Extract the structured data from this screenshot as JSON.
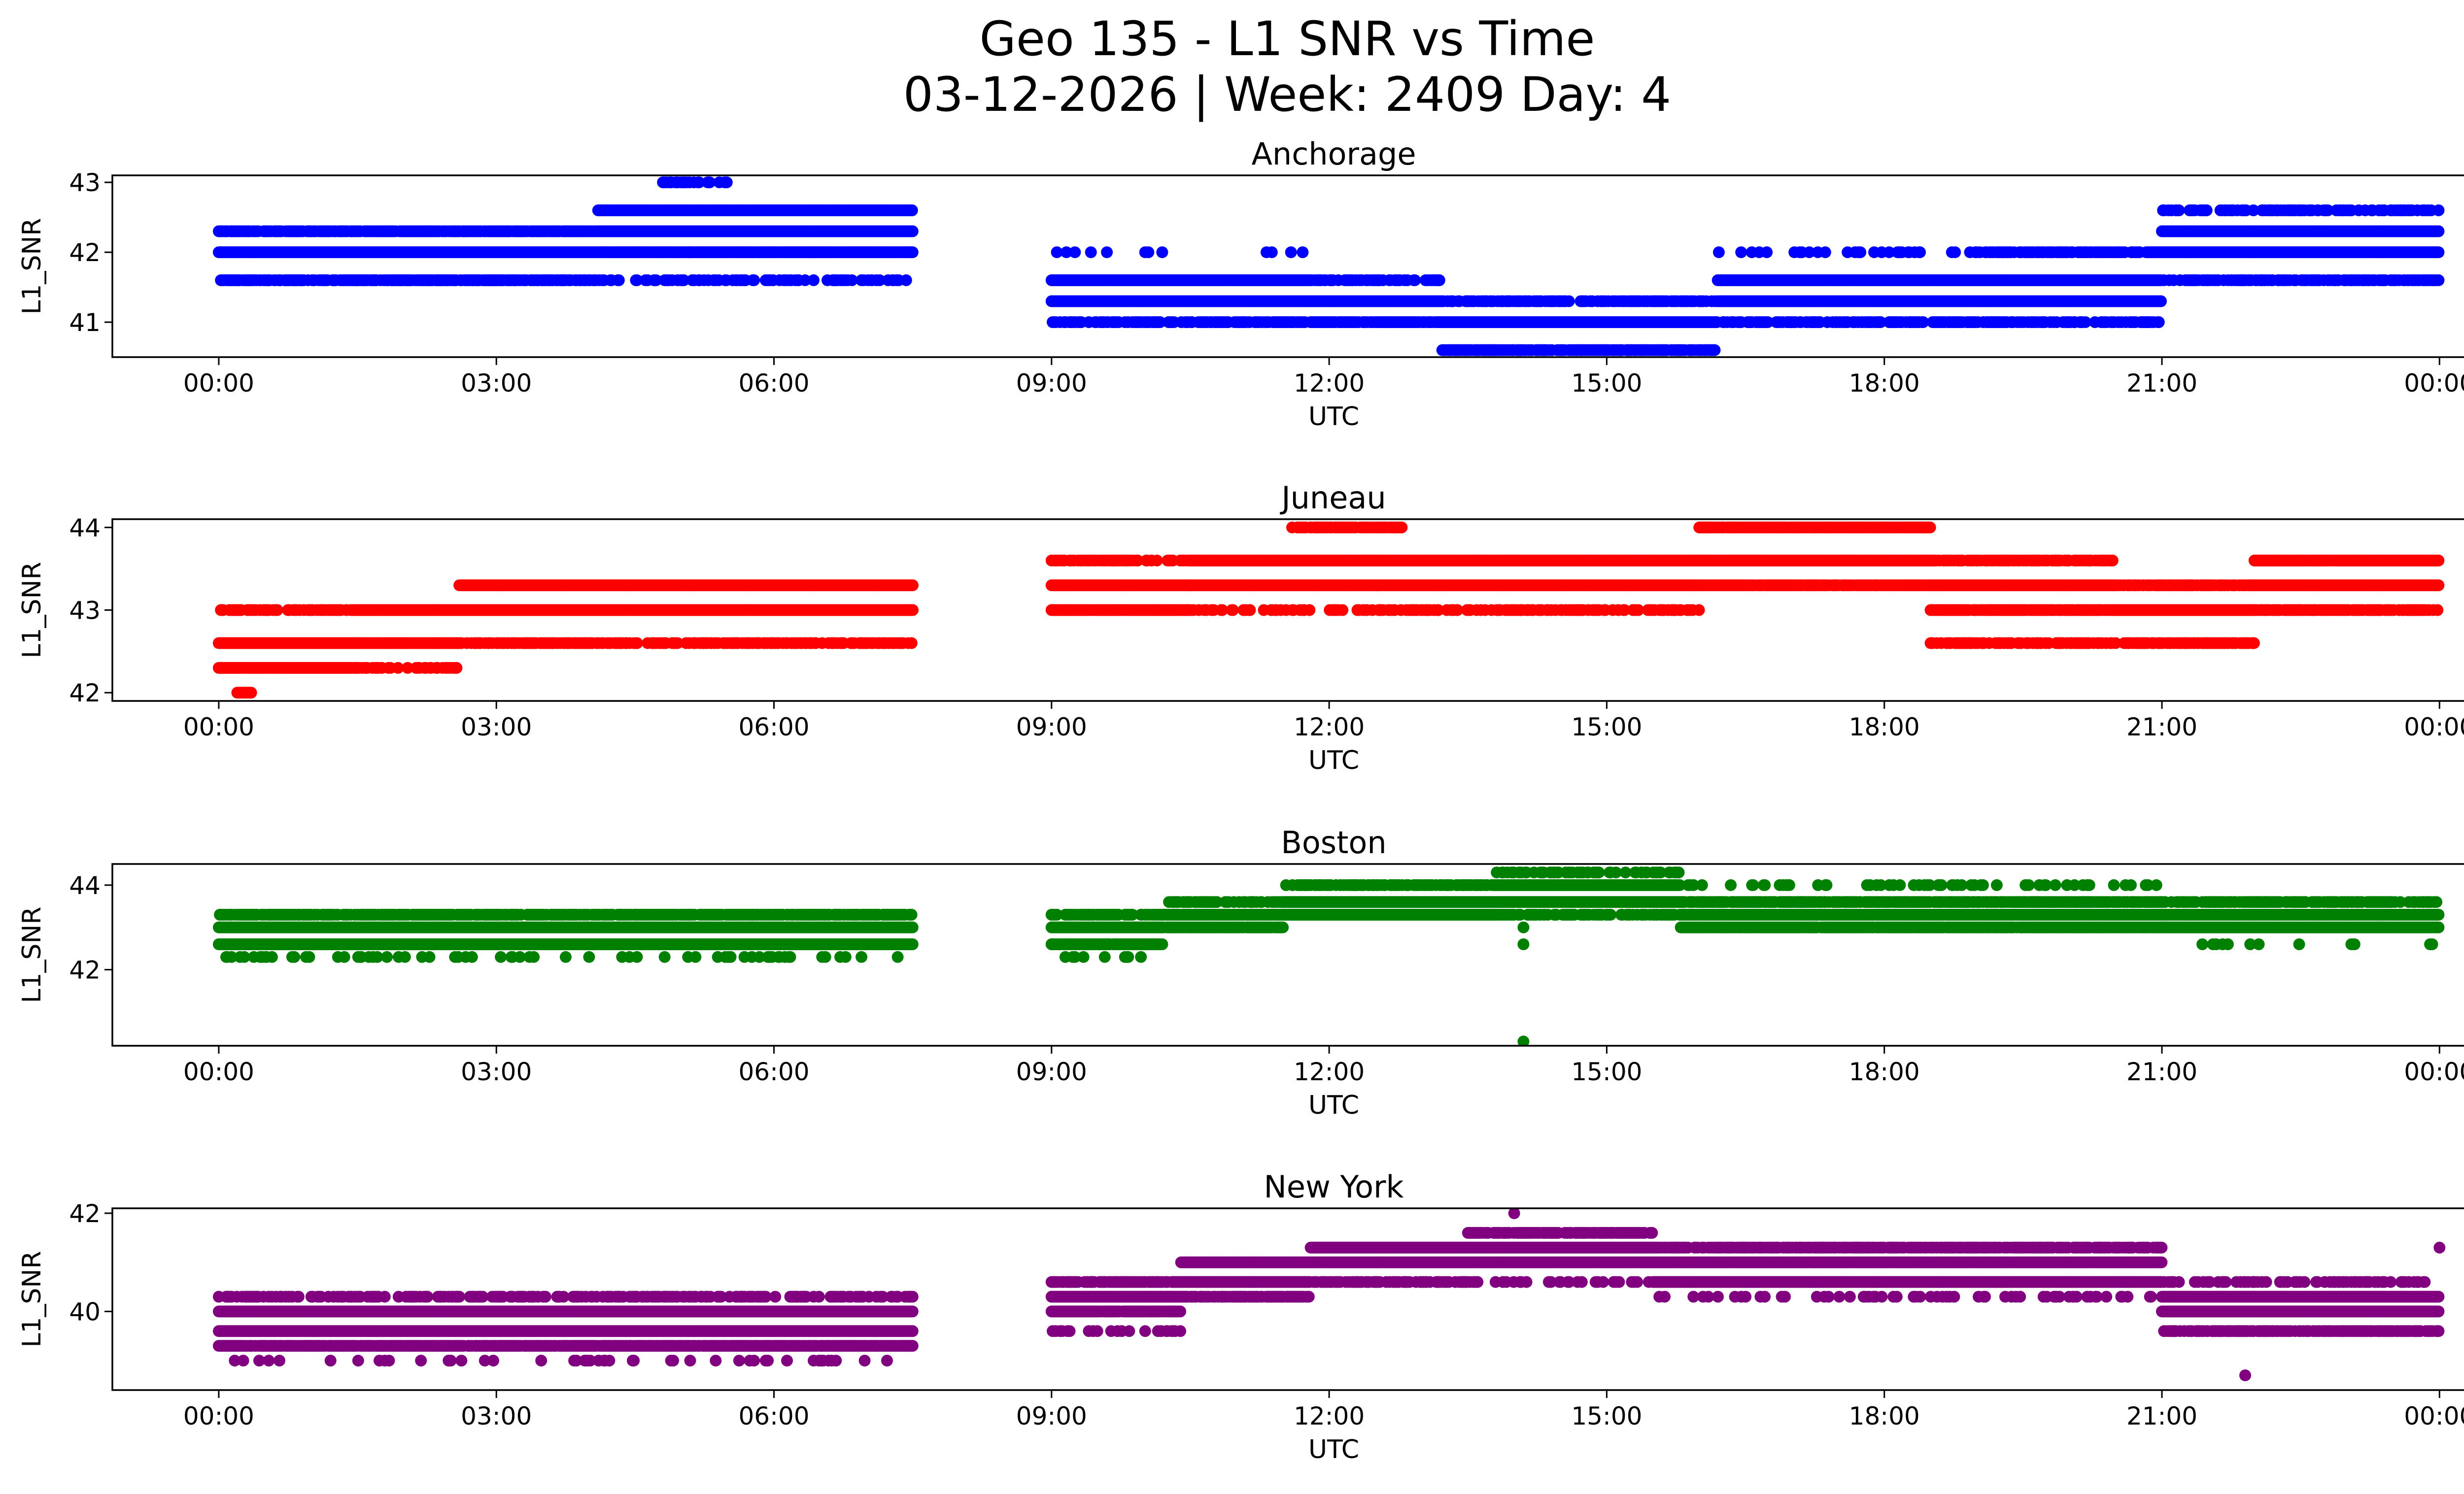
{
  "chart_data": {
    "type": "scatter",
    "title": "Geo 135 - L1 SNR vs Time",
    "subtitle": "03-12-2026 | Week: 2409 Day: 4",
    "xlabel": "UTC",
    "ylabel": "L1_SNR",
    "x_unit": "hours UTC",
    "xlim": [
      -1.15,
      25.25
    ],
    "x_ticks": [
      0,
      3,
      6,
      9,
      12,
      15,
      18,
      21,
      24
    ],
    "x_tick_labels": [
      "00:00",
      "03:00",
      "06:00",
      "09:00",
      "12:00",
      "15:00",
      "18:00",
      "21:00",
      "00:00"
    ],
    "data_gap": [
      7.5,
      9.0
    ],
    "panels": [
      {
        "name": "Anchorage",
        "color": "#0000ff",
        "ylim": [
          40.5,
          43.1
        ],
        "y_ticks": [
          41,
          42,
          43
        ],
        "segments": [
          {
            "start": 0.0,
            "end": 7.5,
            "levels": [
              [
                41.6,
                0.33
              ],
              [
                42.0,
                1.0
              ],
              [
                42.3,
                0.75
              ]
            ]
          },
          {
            "start": 0.0,
            "end": 4.1,
            "levels": [
              [
                41.6,
                0.45
              ]
            ]
          },
          {
            "start": 4.1,
            "end": 7.5,
            "levels": [
              [
                42.6,
                1.0
              ],
              [
                42.3,
                1.0
              ],
              [
                42.0,
                0.5
              ]
            ]
          },
          {
            "start": 4.8,
            "end": 5.5,
            "levels": [
              [
                43.0,
                0.4
              ]
            ]
          },
          {
            "start": 9.0,
            "end": 11.8,
            "levels": [
              [
                41.3,
                1.0
              ],
              [
                41.6,
                1.0
              ],
              [
                41.0,
                0.45
              ],
              [
                42.0,
                0.05
              ]
            ]
          },
          {
            "start": 11.8,
            "end": 13.2,
            "levels": [
              [
                41.3,
                1.0
              ],
              [
                41.0,
                0.8
              ],
              [
                41.6,
                0.4
              ]
            ]
          },
          {
            "start": 13.2,
            "end": 16.2,
            "levels": [
              [
                41.0,
                1.0
              ],
              [
                41.3,
                0.5
              ],
              [
                40.6,
                0.7
              ]
            ]
          },
          {
            "start": 16.2,
            "end": 19.0,
            "levels": [
              [
                41.3,
                1.0
              ],
              [
                41.6,
                1.0
              ],
              [
                41.0,
                0.5
              ],
              [
                42.0,
                0.12
              ]
            ]
          },
          {
            "start": 19.0,
            "end": 21.0,
            "levels": [
              [
                41.3,
                1.0
              ],
              [
                41.6,
                1.0
              ],
              [
                42.0,
                0.6
              ],
              [
                41.0,
                0.4
              ]
            ]
          },
          {
            "start": 21.0,
            "end": 24.0,
            "levels": [
              [
                42.0,
                1.0
              ],
              [
                42.3,
                1.0
              ],
              [
                41.6,
                0.5
              ],
              [
                42.6,
                0.35
              ]
            ]
          }
        ]
      },
      {
        "name": "Juneau",
        "color": "#ff0000",
        "ylim": [
          41.9,
          44.1
        ],
        "y_ticks": [
          42,
          43,
          44
        ],
        "segments": [
          {
            "start": 0.0,
            "end": 1.5,
            "levels": [
              [
                42.6,
                1.0
              ],
              [
                42.3,
                0.9
              ],
              [
                43.0,
                0.5
              ]
            ]
          },
          {
            "start": 0.2,
            "end": 0.35,
            "levels": [
              [
                42.0,
                0.8
              ]
            ]
          },
          {
            "start": 1.5,
            "end": 2.6,
            "levels": [
              [
                43.0,
                1.0
              ],
              [
                42.6,
                0.9
              ],
              [
                42.3,
                0.25
              ]
            ]
          },
          {
            "start": 2.6,
            "end": 7.5,
            "levels": [
              [
                43.3,
                1.0
              ],
              [
                43.0,
                1.0
              ],
              [
                42.6,
                0.45
              ]
            ]
          },
          {
            "start": 9.0,
            "end": 10.5,
            "levels": [
              [
                43.3,
                1.0
              ],
              [
                43.0,
                0.9
              ],
              [
                43.6,
                0.35
              ]
            ]
          },
          {
            "start": 10.5,
            "end": 16.0,
            "levels": [
              [
                43.6,
                1.0
              ],
              [
                43.3,
                1.0
              ],
              [
                43.0,
                0.35
              ]
            ]
          },
          {
            "start": 11.6,
            "end": 12.8,
            "levels": [
              [
                44.0,
                0.6
              ]
            ]
          },
          {
            "start": 16.0,
            "end": 18.5,
            "levels": [
              [
                43.6,
                1.0
              ],
              [
                43.3,
                0.9
              ],
              [
                44.0,
                0.9
              ]
            ]
          },
          {
            "start": 18.5,
            "end": 20.5,
            "levels": [
              [
                43.3,
                1.0
              ],
              [
                43.0,
                0.8
              ],
              [
                43.6,
                0.6
              ],
              [
                42.6,
                0.45
              ]
            ]
          },
          {
            "start": 20.5,
            "end": 22.0,
            "levels": [
              [
                43.0,
                1.0
              ],
              [
                43.3,
                0.8
              ],
              [
                42.6,
                0.55
              ]
            ]
          },
          {
            "start": 22.0,
            "end": 24.0,
            "levels": [
              [
                43.3,
                1.0
              ],
              [
                43.6,
                0.9
              ],
              [
                43.0,
                0.6
              ]
            ]
          }
        ]
      },
      {
        "name": "Boston",
        "color": "#008000",
        "ylim": [
          40.2,
          44.5
        ],
        "y_ticks": [
          42,
          44
        ],
        "segments": [
          {
            "start": 0.0,
            "end": 7.5,
            "levels": [
              [
                43.0,
                1.0
              ],
              [
                42.6,
                1.0
              ],
              [
                43.3,
                0.65
              ],
              [
                42.3,
                0.1
              ]
            ]
          },
          {
            "start": 9.0,
            "end": 10.2,
            "levels": [
              [
                43.0,
                1.0
              ],
              [
                42.6,
                0.9
              ],
              [
                43.3,
                0.55
              ],
              [
                42.3,
                0.1
              ]
            ]
          },
          {
            "start": 10.2,
            "end": 11.5,
            "levels": [
              [
                43.3,
                1.0
              ],
              [
                43.0,
                0.9
              ],
              [
                43.6,
                0.5
              ]
            ]
          },
          {
            "start": 11.5,
            "end": 13.8,
            "levels": [
              [
                43.6,
                1.0
              ],
              [
                43.3,
                1.0
              ],
              [
                44.0,
                0.5
              ]
            ]
          },
          {
            "start": 13.8,
            "end": 15.8,
            "levels": [
              [
                43.6,
                1.0
              ],
              [
                44.0,
                1.0
              ],
              [
                44.3,
                0.3
              ],
              [
                43.3,
                0.5
              ]
            ]
          },
          {
            "start": 15.8,
            "end": 21.0,
            "levels": [
              [
                43.3,
                1.0
              ],
              [
                43.0,
                0.9
              ],
              [
                43.6,
                0.7
              ],
              [
                44.0,
                0.12
              ]
            ]
          },
          {
            "start": 21.0,
            "end": 24.0,
            "levels": [
              [
                43.0,
                1.0
              ],
              [
                43.3,
                1.0
              ],
              [
                43.6,
                0.5
              ],
              [
                42.6,
                0.05
              ]
            ]
          }
        ],
        "outliers": [
          [
            14.1,
            40.3
          ],
          [
            14.1,
            42.6
          ],
          [
            14.1,
            43.0
          ]
        ]
      },
      {
        "name": "New York",
        "color": "#800080",
        "ylim": [
          38.4,
          42.1
        ],
        "y_ticks": [
          40,
          42
        ],
        "segments": [
          {
            "start": 0.0,
            "end": 7.5,
            "levels": [
              [
                39.6,
                1.0
              ],
              [
                40.0,
                1.0
              ],
              [
                39.3,
                0.85
              ],
              [
                40.3,
                0.35
              ],
              [
                39.0,
                0.06
              ]
            ]
          },
          {
            "start": 9.0,
            "end": 10.4,
            "levels": [
              [
                40.3,
                1.0
              ],
              [
                40.0,
                0.9
              ],
              [
                40.6,
                0.7
              ],
              [
                39.6,
                0.2
              ]
            ]
          },
          {
            "start": 10.4,
            "end": 11.8,
            "levels": [
              [
                40.6,
                1.0
              ],
              [
                41.0,
                1.0
              ],
              [
                40.3,
                0.6
              ]
            ]
          },
          {
            "start": 11.8,
            "end": 13.5,
            "levels": [
              [
                41.0,
                1.0
              ],
              [
                41.3,
                1.0
              ],
              [
                40.6,
                0.5
              ]
            ]
          },
          {
            "start": 13.5,
            "end": 15.5,
            "levels": [
              [
                41.3,
                1.0
              ],
              [
                41.0,
                1.0
              ],
              [
                41.6,
                0.7
              ],
              [
                40.6,
                0.2
              ]
            ]
          },
          {
            "start": 15.5,
            "end": 21.0,
            "levels": [
              [
                41.0,
                1.0
              ],
              [
                40.6,
                1.0
              ],
              [
                41.3,
                0.65
              ],
              [
                40.3,
                0.12
              ]
            ]
          },
          {
            "start": 21.0,
            "end": 24.0,
            "levels": [
              [
                40.0,
                1.0
              ],
              [
                40.3,
                1.0
              ],
              [
                39.6,
                0.6
              ],
              [
                40.6,
                0.3
              ]
            ]
          }
        ],
        "outliers": [
          [
            14.0,
            42.0
          ],
          [
            21.9,
            38.7
          ],
          [
            24.0,
            41.3
          ]
        ]
      }
    ]
  }
}
